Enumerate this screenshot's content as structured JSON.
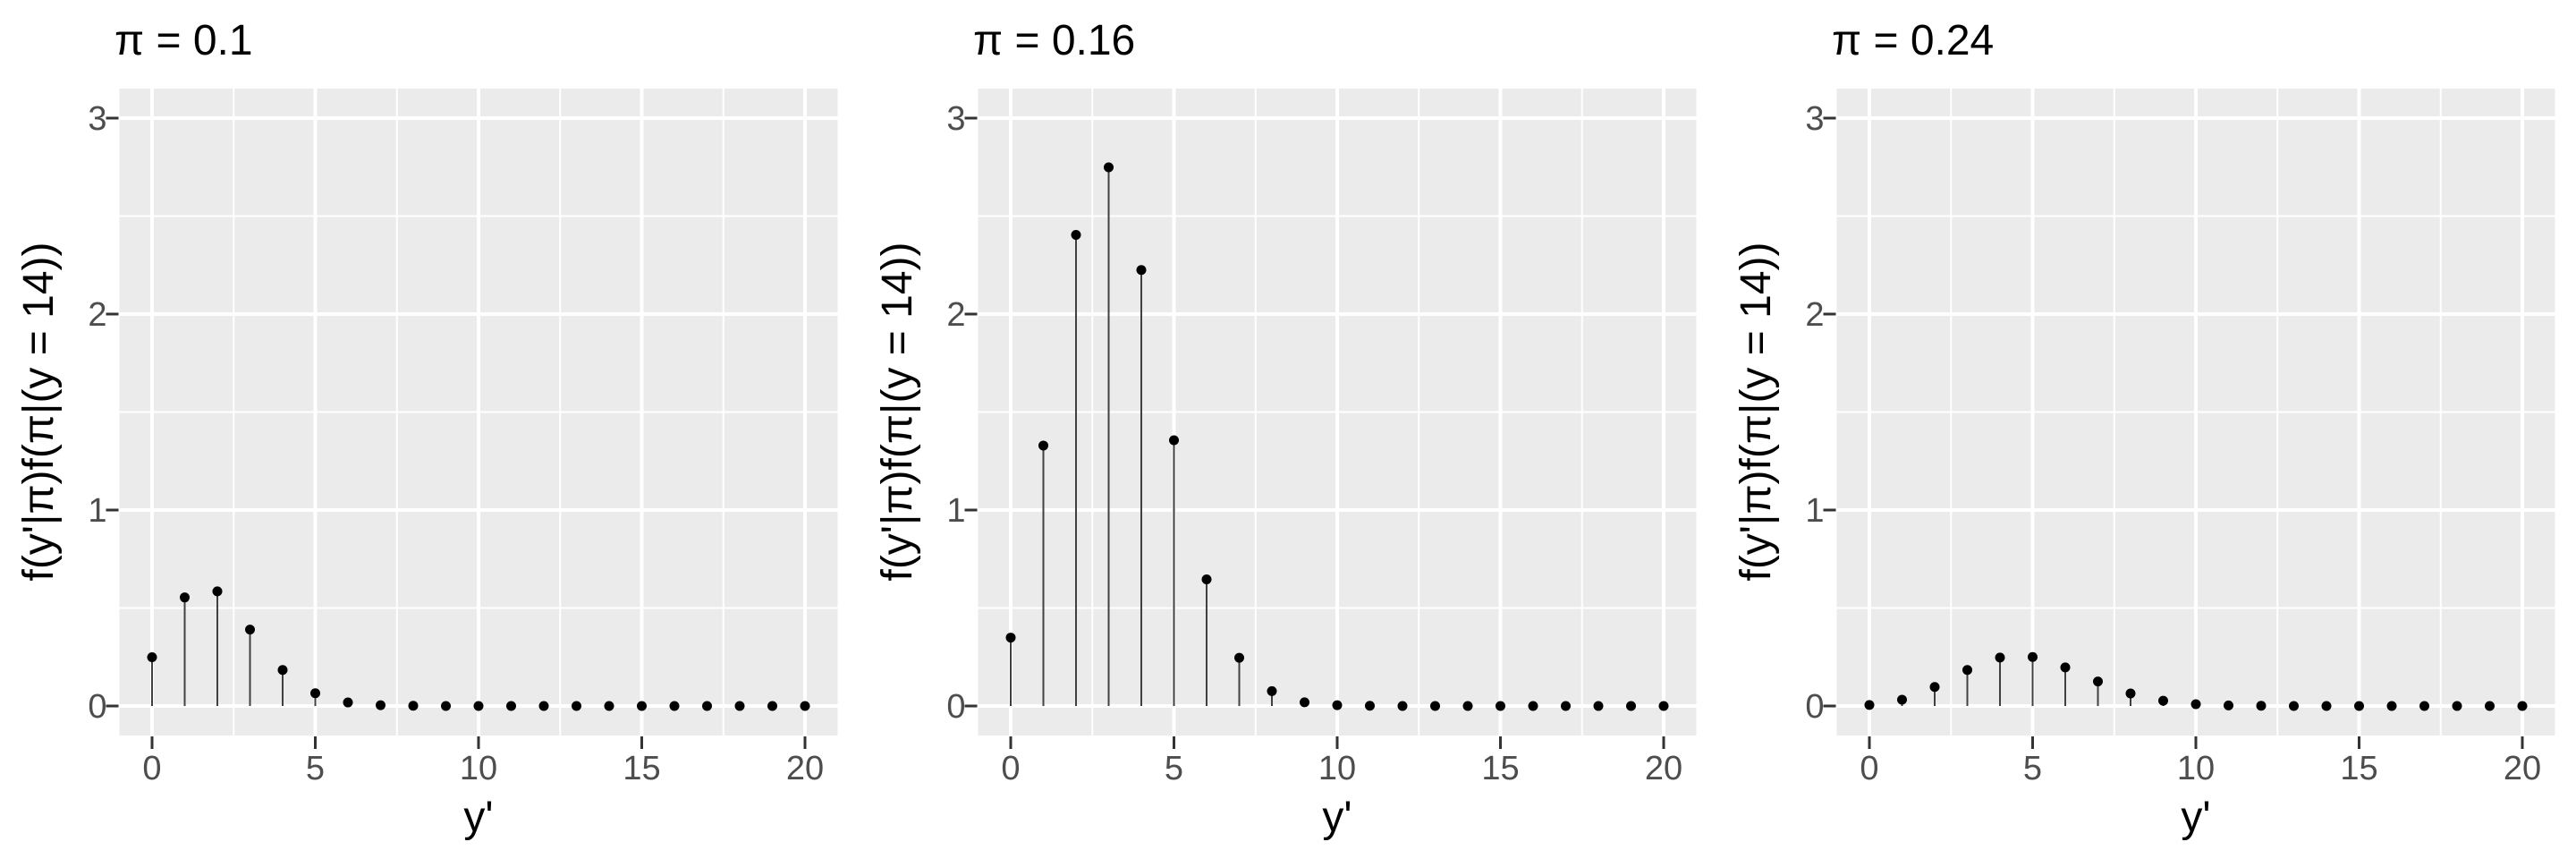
{
  "figure": {
    "background": "#FFFFFF",
    "n_panels": 3
  },
  "style": {
    "panel_bg": "#EBEBEB",
    "grid_color": "#FFFFFF",
    "point_color": "#000000",
    "stem_color": "#404040",
    "tick_color": "#333333",
    "tick_label_color": "#4D4D4D",
    "title_color": "#000000"
  },
  "chart_data": [
    {
      "type": "stem",
      "title": "π = 0.1",
      "xlabel": "y'",
      "ylabel": "f(y'|π)f(π|(y = 14))",
      "xlim": [
        0,
        20
      ],
      "ylim": [
        0,
        3
      ],
      "x_ticks": [
        0,
        5,
        10,
        15,
        20
      ],
      "y_ticks": [
        0,
        1,
        2,
        3
      ],
      "grid": true,
      "legend": "none",
      "x": [
        0,
        1,
        2,
        3,
        4,
        5,
        6,
        7,
        8,
        9,
        10,
        11,
        12,
        13,
        14,
        15,
        16,
        17,
        18,
        19,
        20
      ],
      "values": [
        0.249,
        0.554,
        0.585,
        0.39,
        0.184,
        0.065,
        0.018,
        0.004,
        0.001,
        0,
        0,
        0,
        0,
        0,
        0,
        0,
        0,
        0,
        0,
        0,
        0
      ]
    },
    {
      "type": "stem",
      "title": "π = 0.16",
      "xlabel": "y'",
      "ylabel": "f(y'|π)f(π|(y = 14))",
      "xlim": [
        0,
        20
      ],
      "ylim": [
        0,
        3
      ],
      "x_ticks": [
        0,
        5,
        10,
        15,
        20
      ],
      "y_ticks": [
        0,
        1,
        2,
        3
      ],
      "grid": true,
      "legend": "none",
      "x": [
        0,
        1,
        2,
        3,
        4,
        5,
        6,
        7,
        8,
        9,
        10,
        11,
        12,
        13,
        14,
        15,
        16,
        17,
        18,
        19,
        20
      ],
      "values": [
        0.349,
        1.329,
        2.404,
        2.749,
        2.225,
        1.356,
        0.646,
        0.246,
        0.076,
        0.019,
        0.004,
        0.001,
        0,
        0,
        0,
        0,
        0,
        0,
        0,
        0,
        0
      ]
    },
    {
      "type": "stem",
      "title": "π = 0.24",
      "xlabel": "y'",
      "ylabel": "f(y'|π)f(π|(y = 14))",
      "xlim": [
        0,
        20
      ],
      "ylim": [
        0,
        3
      ],
      "x_ticks": [
        0,
        5,
        10,
        15,
        20
      ],
      "y_ticks": [
        0,
        1,
        2,
        3
      ],
      "grid": true,
      "legend": "none",
      "x": [
        0,
        1,
        2,
        3,
        4,
        5,
        6,
        7,
        8,
        9,
        10,
        11,
        12,
        13,
        14,
        15,
        16,
        17,
        18,
        19,
        20
      ],
      "values": [
        0.005,
        0.032,
        0.097,
        0.184,
        0.247,
        0.25,
        0.197,
        0.125,
        0.064,
        0.027,
        0.009,
        0.003,
        0.001,
        0,
        0,
        0,
        0,
        0,
        0,
        0,
        0
      ]
    }
  ]
}
